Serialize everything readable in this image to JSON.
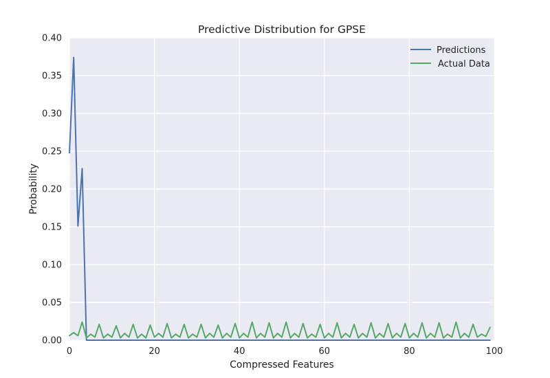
{
  "chart_data": {
    "type": "line",
    "title": "Predictive Distribution for GPSE",
    "xlabel": "Compressed Features",
    "ylabel": "Probability",
    "xlim": [
      0,
      100
    ],
    "ylim": [
      0,
      0.4
    ],
    "xticks": [
      0,
      20,
      40,
      60,
      80,
      100
    ],
    "xtick_labels": [
      "0",
      "20",
      "40",
      "60",
      "80",
      "100"
    ],
    "yticks": [
      0,
      0.05,
      0.1,
      0.15,
      0.2,
      0.25,
      0.3,
      0.35,
      0.4
    ],
    "ytick_labels": [
      "0.00",
      "0.05",
      "0.10",
      "0.15",
      "0.20",
      "0.25",
      "0.30",
      "0.35",
      "0.40"
    ],
    "grid": true,
    "background_color": "#EAEAF2",
    "legend_position": "top-right",
    "x": [
      0,
      1,
      2,
      3,
      4,
      5,
      6,
      7,
      8,
      9,
      10,
      11,
      12,
      13,
      14,
      15,
      16,
      17,
      18,
      19,
      20,
      21,
      22,
      23,
      24,
      25,
      26,
      27,
      28,
      29,
      30,
      31,
      32,
      33,
      34,
      35,
      36,
      37,
      38,
      39,
      40,
      41,
      42,
      43,
      44,
      45,
      46,
      47,
      48,
      49,
      50,
      51,
      52,
      53,
      54,
      55,
      56,
      57,
      58,
      59,
      60,
      61,
      62,
      63,
      64,
      65,
      66,
      67,
      68,
      69,
      70,
      71,
      72,
      73,
      74,
      75,
      76,
      77,
      78,
      79,
      80,
      81,
      82,
      83,
      84,
      85,
      86,
      87,
      88,
      89,
      90,
      91,
      92,
      93,
      94,
      95,
      96,
      97,
      98,
      99
    ],
    "series": [
      {
        "name": "Predictions",
        "color": "#4C72B0",
        "values": [
          0.248,
          0.374,
          0.151,
          0.227,
          0,
          0,
          0,
          0,
          0,
          0,
          0,
          0,
          0,
          0,
          0,
          0,
          0,
          0,
          0,
          0,
          0,
          0,
          0,
          0,
          0,
          0,
          0,
          0,
          0,
          0,
          0,
          0,
          0,
          0,
          0,
          0,
          0,
          0,
          0,
          0,
          0,
          0,
          0,
          0,
          0,
          0,
          0,
          0,
          0,
          0,
          0,
          0,
          0,
          0,
          0,
          0,
          0,
          0,
          0,
          0,
          0,
          0,
          0,
          0,
          0,
          0,
          0,
          0,
          0,
          0,
          0,
          0,
          0,
          0,
          0,
          0,
          0,
          0,
          0,
          0,
          0,
          0,
          0,
          0,
          0,
          0,
          0,
          0,
          0,
          0,
          0,
          0,
          0,
          0,
          0,
          0,
          0,
          0,
          0,
          0
        ]
      },
      {
        "name": "Actual Data",
        "color": "#55A868",
        "values": [
          0.006,
          0.01,
          0.006,
          0.024,
          0.003,
          0.008,
          0.004,
          0.021,
          0.003,
          0.008,
          0.004,
          0.019,
          0.003,
          0.009,
          0.004,
          0.021,
          0.003,
          0.008,
          0.003,
          0.02,
          0.004,
          0.009,
          0.004,
          0.022,
          0.003,
          0.008,
          0.004,
          0.021,
          0.003,
          0.008,
          0.004,
          0.021,
          0.003,
          0.009,
          0.004,
          0.02,
          0.003,
          0.009,
          0.004,
          0.022,
          0.003,
          0.009,
          0.004,
          0.024,
          0.003,
          0.009,
          0.004,
          0.023,
          0.003,
          0.009,
          0.004,
          0.024,
          0.003,
          0.009,
          0.004,
          0.022,
          0.003,
          0.008,
          0.004,
          0.021,
          0.003,
          0.009,
          0.004,
          0.023,
          0.003,
          0.009,
          0.004,
          0.021,
          0.003,
          0.009,
          0.004,
          0.023,
          0.003,
          0.009,
          0.004,
          0.022,
          0.003,
          0.009,
          0.004,
          0.022,
          0.003,
          0.009,
          0.004,
          0.023,
          0.003,
          0.009,
          0.004,
          0.023,
          0.003,
          0.008,
          0.004,
          0.024,
          0.003,
          0.009,
          0.004,
          0.021,
          0.004,
          0.008,
          0.005,
          0.017
        ]
      }
    ]
  }
}
